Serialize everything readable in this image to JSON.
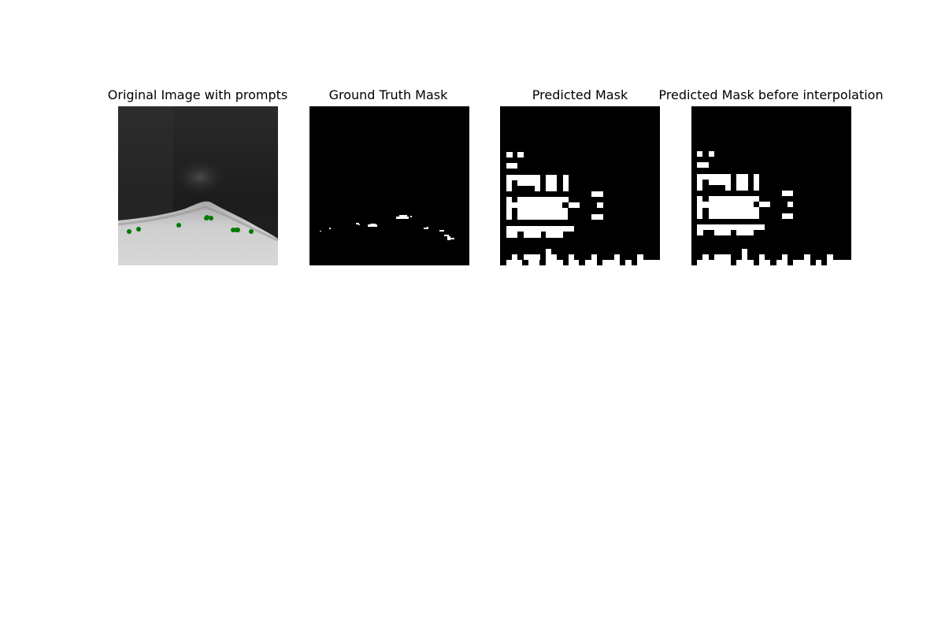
{
  "figure": {
    "panels": [
      {
        "title": "Original Image with prompts"
      },
      {
        "title": "Ground Truth Mask"
      },
      {
        "title": "Predicted Mask"
      },
      {
        "title": "Predicted Mask before interpolation"
      }
    ],
    "prompt_points": {
      "color": "#007a00",
      "count": 10
    },
    "mask_colors": {
      "foreground": "#ffffff",
      "background": "#000000"
    }
  }
}
